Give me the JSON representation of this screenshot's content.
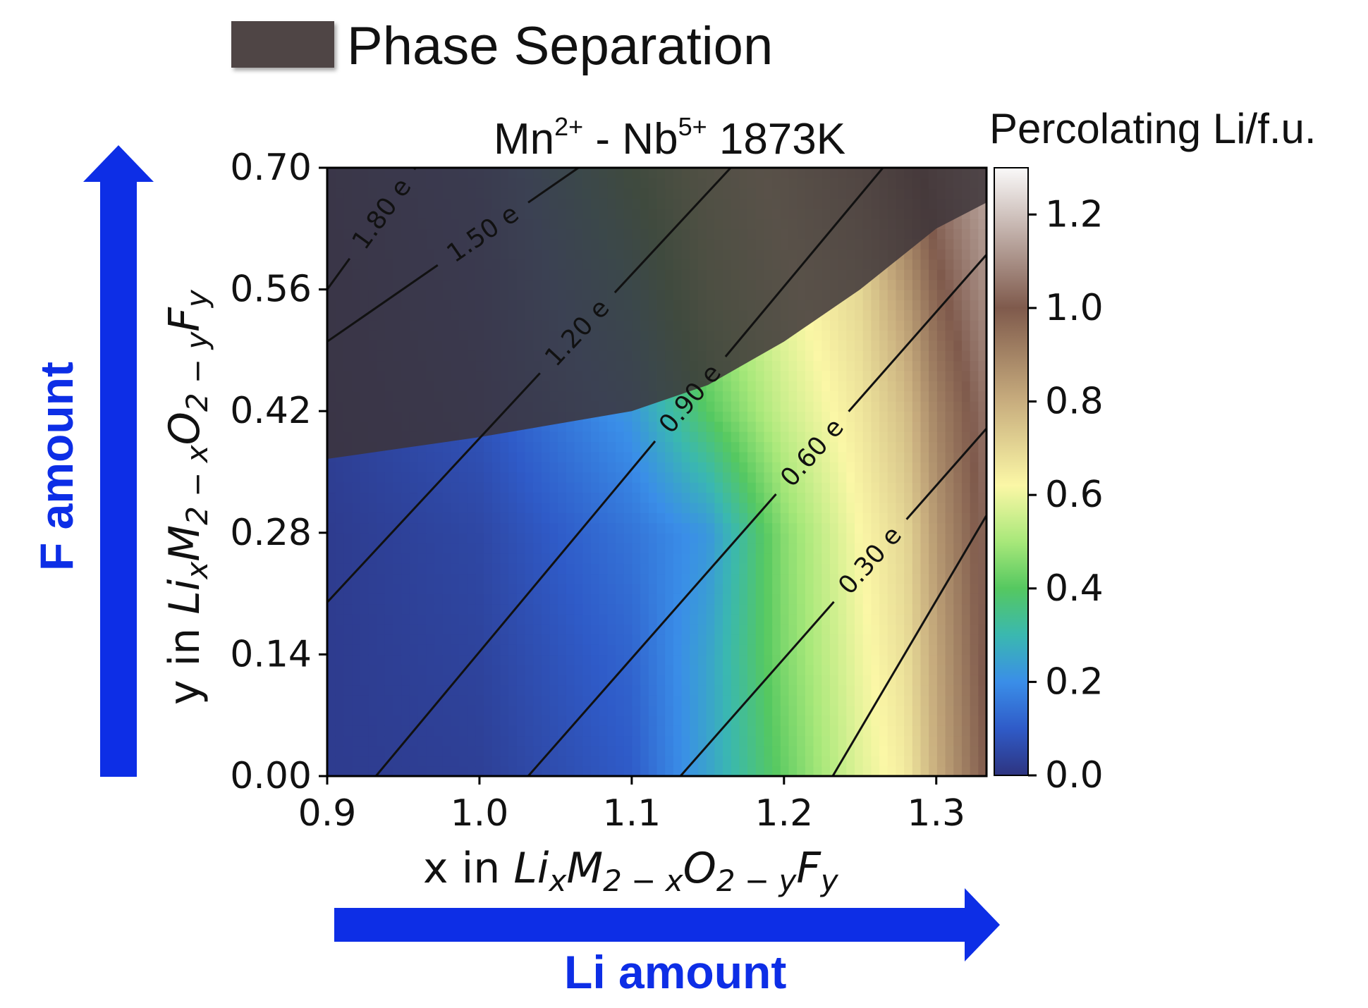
{
  "chart_data": {
    "type": "heatmap",
    "title": {
      "cation1": "Mn",
      "cation1_charge": "2+",
      "separator": " - ",
      "cation2": "Nb",
      "cation2_charge": "5+",
      "temperature": " 1873K"
    },
    "xlabel": {
      "prefix": "x in ",
      "formula": [
        "Li",
        "x",
        "M",
        "2 − x",
        "O",
        "2 − y",
        "F",
        "y"
      ]
    },
    "ylabel": {
      "prefix": "y in ",
      "formula": [
        "Li",
        "x",
        "M",
        "2 − x",
        "O",
        "2 − y",
        "F",
        "y"
      ]
    },
    "xlim": [
      0.9,
      1.333
    ],
    "ylim": [
      0.0,
      0.7
    ],
    "xticks": [
      {
        "value": 0.9,
        "label": "0.9"
      },
      {
        "value": 1.0,
        "label": "1.0"
      },
      {
        "value": 1.1,
        "label": "1.1"
      },
      {
        "value": 1.2,
        "label": "1.2"
      },
      {
        "value": 1.3,
        "label": "1.3"
      }
    ],
    "yticks": [
      {
        "value": 0.0,
        "label": "0.00"
      },
      {
        "value": 0.14,
        "label": "0.14"
      },
      {
        "value": 0.28,
        "label": "0.28"
      },
      {
        "value": 0.42,
        "label": "0.42"
      },
      {
        "value": 0.56,
        "label": "0.56"
      },
      {
        "value": 0.7,
        "label": "0.70"
      }
    ],
    "colorbar": {
      "label": "Percolating Li/f.u.",
      "range": [
        0.0,
        1.3
      ],
      "ticks": [
        {
          "value": 0.0,
          "label": "0.0"
        },
        {
          "value": 0.2,
          "label": "0.2"
        },
        {
          "value": 0.4,
          "label": "0.4"
        },
        {
          "value": 0.6,
          "label": "0.6"
        },
        {
          "value": 0.8,
          "label": "0.8"
        },
        {
          "value": 1.0,
          "label": "1.0"
        },
        {
          "value": 1.2,
          "label": "1.2"
        }
      ],
      "colors": [
        {
          "value": 0.0,
          "color": "#2e3480"
        },
        {
          "value": 0.1,
          "color": "#2f5bc8"
        },
        {
          "value": 0.2,
          "color": "#3a8ee8"
        },
        {
          "value": 0.3,
          "color": "#3ab8b0"
        },
        {
          "value": 0.4,
          "color": "#55c860"
        },
        {
          "value": 0.5,
          "color": "#a8e87a"
        },
        {
          "value": 0.62,
          "color": "#fbf7a6"
        },
        {
          "value": 0.8,
          "color": "#c8ad7e"
        },
        {
          "value": 1.0,
          "color": "#7f5a4c"
        },
        {
          "value": 1.15,
          "color": "#bca9a2"
        },
        {
          "value": 1.3,
          "color": "#faf9f9"
        }
      ]
    },
    "heatmap_samples": {
      "x": [
        0.9,
        1.0,
        1.1,
        1.15,
        1.2,
        1.25,
        1.28,
        1.3,
        1.333
      ],
      "y": [
        0.0,
        0.14,
        0.28,
        0.42,
        0.56,
        0.7
      ],
      "z": [
        [
          0.02,
          0.03,
          0.1,
          0.25,
          0.42,
          0.58,
          0.65,
          0.8,
          1.0
        ],
        [
          0.02,
          0.04,
          0.12,
          0.25,
          0.45,
          0.6,
          0.68,
          0.82,
          1.02
        ],
        [
          0.02,
          0.05,
          0.15,
          0.22,
          0.46,
          0.62,
          0.7,
          0.85,
          1.03
        ],
        [
          0.03,
          0.08,
          0.22,
          0.4,
          0.55,
          0.66,
          0.76,
          0.9,
          1.05
        ],
        [
          0.04,
          0.1,
          0.3,
          0.5,
          0.6,
          0.7,
          0.85,
          0.98,
          1.1
        ],
        [
          0.05,
          0.12,
          0.4,
          0.55,
          0.65,
          0.8,
          0.95,
          1.05,
          1.15
        ]
      ]
    },
    "contours": [
      {
        "label": "1.80 e",
        "points": [
          [
            0.9,
            0.56
          ],
          [
            0.958,
            0.7
          ]
        ]
      },
      {
        "label": "1.50 e",
        "points": [
          [
            0.9,
            0.5
          ],
          [
            1.065,
            0.7
          ]
        ]
      },
      {
        "label": "1.20 e",
        "points": [
          [
            0.9,
            0.2
          ],
          [
            1.165,
            0.7
          ]
        ]
      },
      {
        "label": "0.90 e",
        "points": [
          [
            0.932,
            0.0
          ],
          [
            1.265,
            0.7
          ]
        ]
      },
      {
        "label": "0.60 e",
        "points": [
          [
            1.032,
            0.0
          ],
          [
            1.333,
            0.6
          ]
        ]
      },
      {
        "label": "0.30 e",
        "points": [
          [
            1.132,
            0.0
          ],
          [
            1.333,
            0.4
          ]
        ]
      },
      {
        "label": "",
        "points": [
          [
            1.232,
            0.0
          ],
          [
            1.333,
            0.3
          ]
        ]
      }
    ],
    "phase_separation_region": {
      "color": "#3c3438",
      "opacity": 0.85,
      "boundary": [
        [
          0.9,
          0.365
        ],
        [
          1.0,
          0.39
        ],
        [
          1.1,
          0.42
        ],
        [
          1.15,
          0.45
        ],
        [
          1.2,
          0.5
        ],
        [
          1.25,
          0.56
        ],
        [
          1.3,
          0.63
        ],
        [
          1.333,
          0.66
        ]
      ]
    },
    "legend": {
      "label": "Phase Separation",
      "color": "#4f4444",
      "placement": "top"
    }
  },
  "annotations": {
    "f_amount": "F amount",
    "li_amount": "Li amount",
    "arrow_color": "#0d2ee6"
  }
}
